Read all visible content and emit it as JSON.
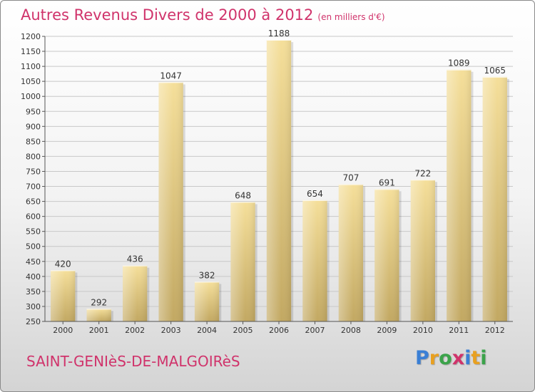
{
  "title": "Autres Revenus Divers de 2000 à 2012",
  "subtitle": "(en milliers d'€)",
  "commune": "SAINT-GENIèS-DE-MALGOIRèS",
  "logo": {
    "letters": [
      "P",
      "r",
      "o",
      "x",
      "i",
      "t",
      "i"
    ],
    "colors": [
      "#3a7fd5",
      "#e8a020",
      "#3ba34a",
      "#d0336b",
      "#3a7fd5",
      "#e8a020",
      "#3ba34a"
    ]
  },
  "colors": {
    "bar_light": "#f5df9a",
    "bar_dark": "#c2a862",
    "title": "#d0336b"
  },
  "chart_data": {
    "type": "bar",
    "categories": [
      "2000",
      "2001",
      "2002",
      "2003",
      "2004",
      "2005",
      "2006",
      "2007",
      "2008",
      "2009",
      "2010",
      "2011",
      "2012"
    ],
    "values": [
      420,
      292,
      436,
      1047,
      382,
      648,
      1188,
      654,
      707,
      691,
      722,
      1089,
      1065
    ],
    "ylim": [
      250,
      1200
    ],
    "yticks": [
      250,
      300,
      350,
      400,
      450,
      500,
      550,
      600,
      650,
      700,
      750,
      800,
      850,
      900,
      950,
      1000,
      1050,
      1100,
      1150,
      1200
    ],
    "grid": true
  }
}
